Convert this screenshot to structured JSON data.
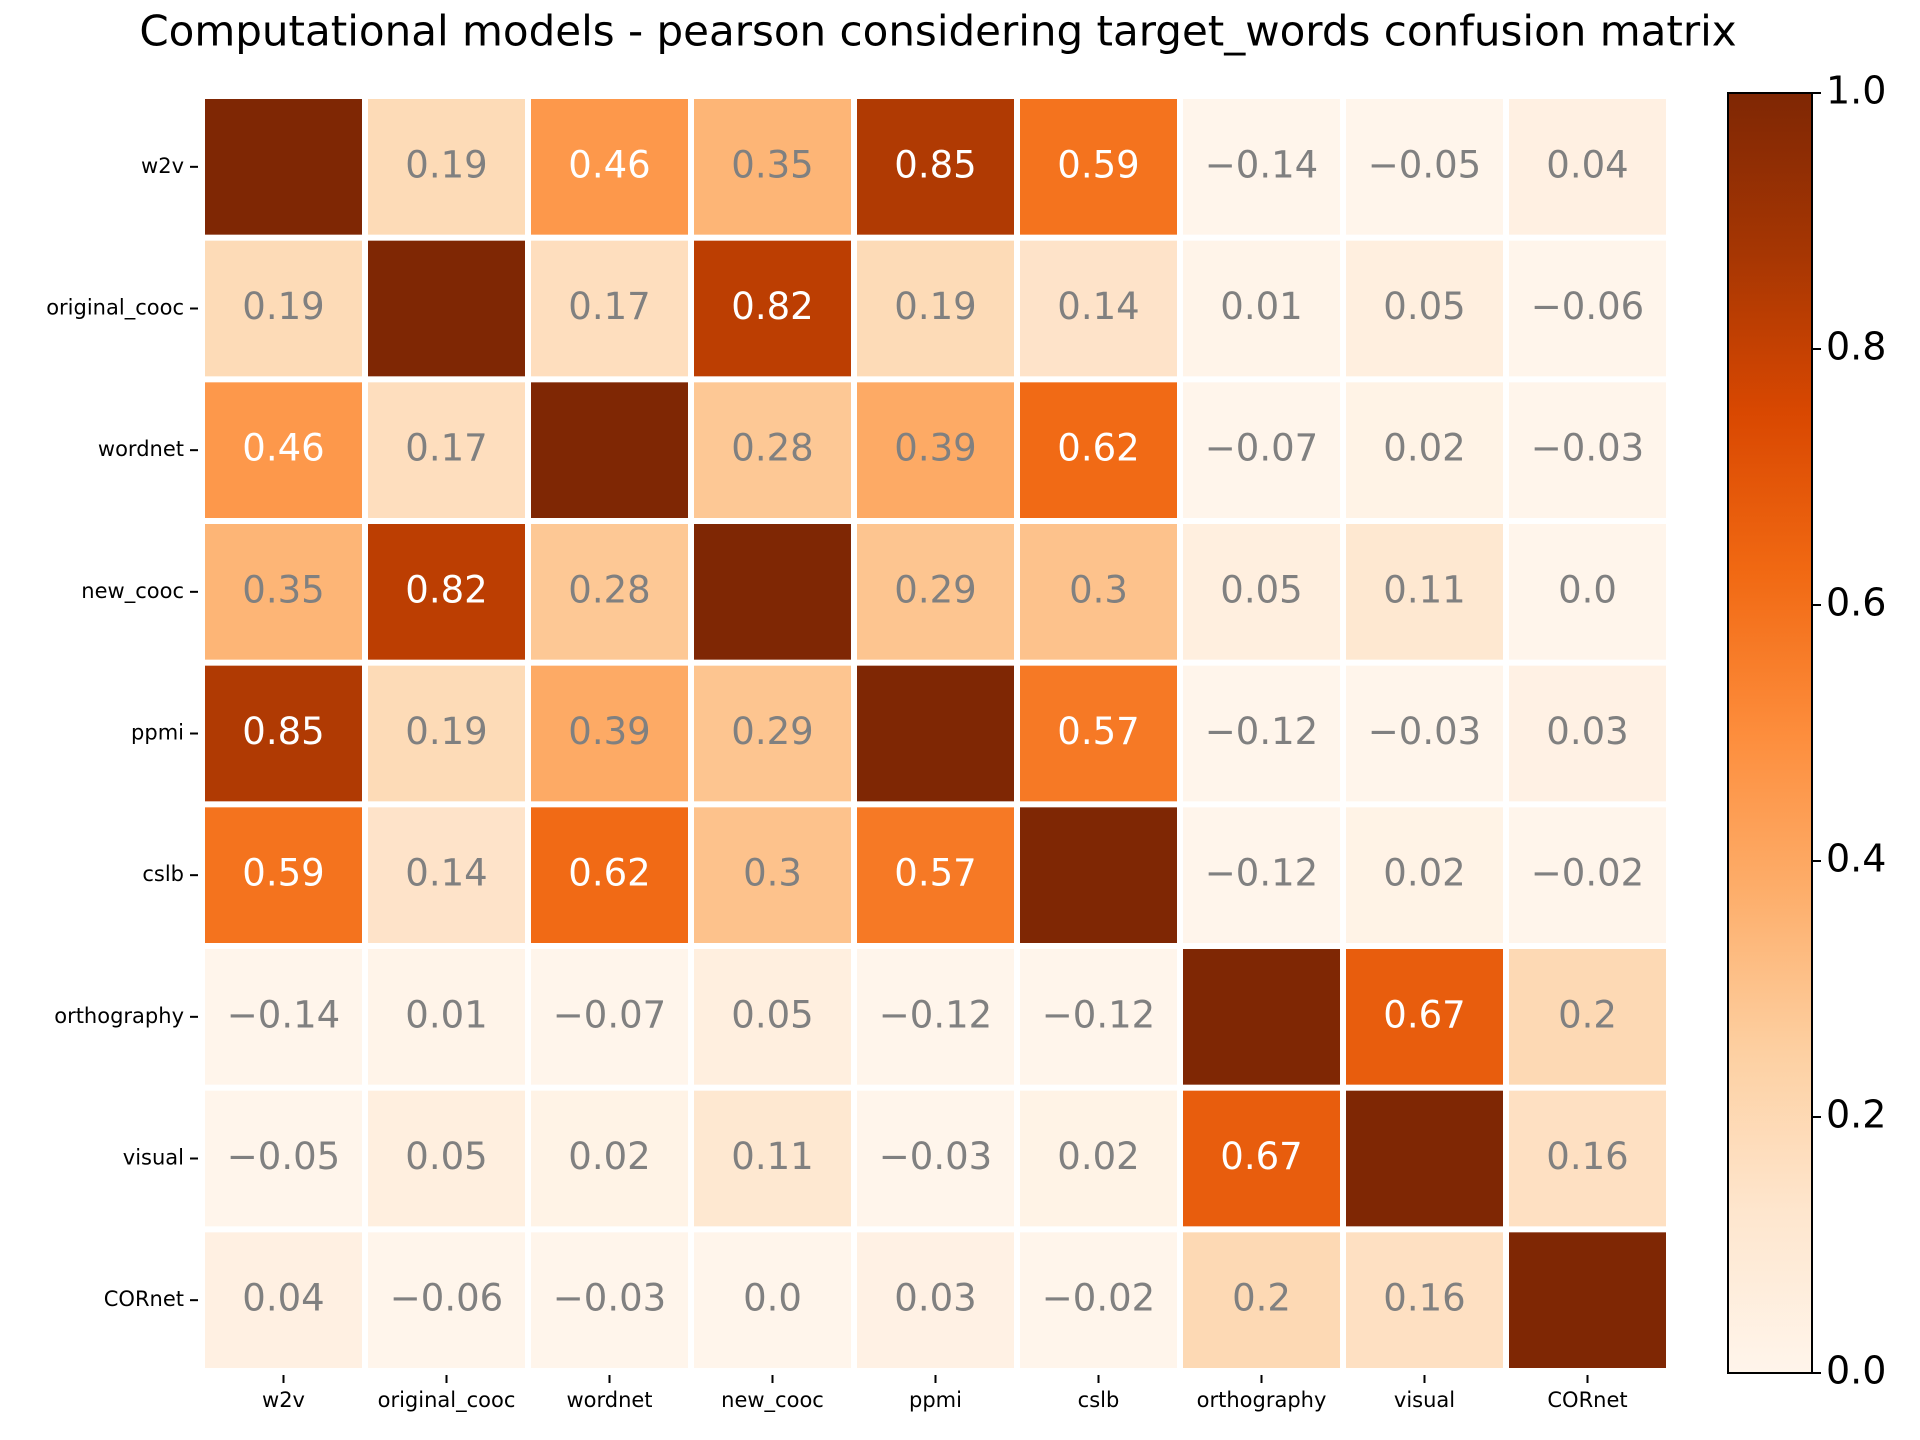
{
  "chart_data": {
    "type": "heatmap",
    "title": "Computational models - pearson considering target_words confusion matrix",
    "categories": [
      "w2v",
      "original_cooc",
      "wordnet",
      "new_cooc",
      "ppmi",
      "cslb",
      "orthography",
      "visual",
      "CORnet"
    ],
    "values": [
      [
        1,
        0.19,
        0.46,
        0.35,
        0.85,
        0.59,
        -0.14,
        -0.05,
        0.04
      ],
      [
        0.19,
        1,
        0.17,
        0.82,
        0.19,
        0.14,
        0.01,
        0.05,
        -0.06
      ],
      [
        0.46,
        0.17,
        1,
        0.28,
        0.39,
        0.62,
        -0.07,
        0.02,
        -0.03
      ],
      [
        0.35,
        0.82,
        0.28,
        1,
        0.29,
        0.3,
        0.05,
        0.11,
        0
      ],
      [
        0.85,
        0.19,
        0.39,
        0.29,
        1,
        0.57,
        -0.12,
        -0.03,
        0.03
      ],
      [
        0.59,
        0.14,
        0.62,
        0.3,
        0.57,
        1,
        -0.12,
        0.02,
        -0.02
      ],
      [
        -0.14,
        0.01,
        -0.07,
        0.05,
        -0.12,
        -0.12,
        1,
        0.67,
        0.2
      ],
      [
        -0.05,
        0.05,
        0.02,
        0.11,
        -0.03,
        0.02,
        0.67,
        1,
        0.16
      ],
      [
        0.04,
        -0.06,
        -0.03,
        0,
        0.03,
        -0.02,
        0.2,
        0.16,
        1
      ]
    ],
    "value_labels": [
      [
        null,
        "0.19",
        "0.46",
        "0.35",
        "0.85",
        "0.59",
        "−0.14",
        "−0.05",
        "0.04"
      ],
      [
        "0.19",
        null,
        "0.17",
        "0.82",
        "0.19",
        "0.14",
        "0.01",
        "0.05",
        "−0.06"
      ],
      [
        "0.46",
        "0.17",
        null,
        "0.28",
        "0.39",
        "0.62",
        "−0.07",
        "0.02",
        "−0.03"
      ],
      [
        "0.35",
        "0.82",
        "0.28",
        null,
        "0.29",
        "0.3",
        "0.05",
        "0.11",
        "0.0"
      ],
      [
        "0.85",
        "0.19",
        "0.39",
        "0.29",
        null,
        "0.57",
        "−0.12",
        "−0.03",
        "0.03"
      ],
      [
        "0.59",
        "0.14",
        "0.62",
        "0.3",
        "0.57",
        null,
        "−0.12",
        "0.02",
        "−0.02"
      ],
      [
        "−0.14",
        "0.01",
        "−0.07",
        "0.05",
        "−0.12",
        "−0.12",
        null,
        "0.67",
        "0.2"
      ],
      [
        "−0.05",
        "0.05",
        "0.02",
        "0.11",
        "−0.03",
        "0.02",
        "0.67",
        null,
        "0.16"
      ],
      [
        "0.04",
        "−0.06",
        "−0.03",
        "0.0",
        "0.03",
        "−0.02",
        "0.2",
        "0.16",
        null
      ]
    ],
    "colors": [
      "#fff5eb",
      "#fee6ce",
      "#fdd0a2",
      "#fdae6b",
      "#fd8d3c",
      "#f16913",
      "#d94801",
      "#a63603",
      "#7f2704"
    ],
    "clim": [
      0,
      1
    ],
    "cticks": [
      {
        "value": 0,
        "label": "0.0"
      },
      0.2,
      0.4,
      0.6,
      0.8,
      {
        "value": 1,
        "label": "1.0"
      }
    ]
  }
}
